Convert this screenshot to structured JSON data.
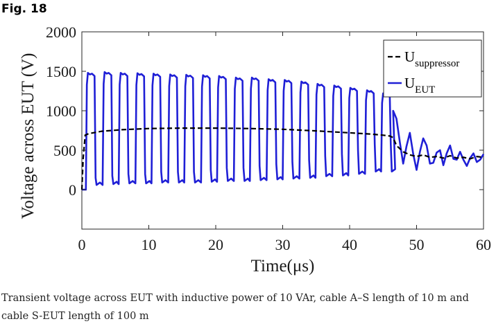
{
  "figure_label": "Fig. 18",
  "caption": "Transient voltage across EUT with inductive power of 10 VAr, cable A–S length of 10 m and cable S-EUT length of 100 m",
  "chart_data": {
    "type": "line",
    "xlabel": "Time(μs)",
    "ylabel": "Voltage across EUT (V)",
    "xlim": [
      0,
      60
    ],
    "ylim": [
      -500,
      2000
    ],
    "xticks": [
      0,
      10,
      20,
      30,
      40,
      50,
      60
    ],
    "yticks": [
      0,
      500,
      1000,
      1500,
      2000
    ],
    "grid": false,
    "legend_position": "top-right",
    "series": [
      {
        "name": "U_suppressor",
        "legend_main": "U",
        "legend_sub": "suppressor",
        "color": "#000000",
        "style": "dashed",
        "x": [
          0,
          0.2,
          0.5,
          1,
          3,
          6,
          10,
          15,
          20,
          25,
          30,
          35,
          40,
          43,
          45,
          46,
          46.5,
          47,
          48,
          49,
          50,
          51,
          52,
          53,
          54,
          55,
          56,
          57,
          58,
          59,
          60
        ],
        "y": [
          0,
          400,
          690,
          710,
          740,
          760,
          775,
          780,
          780,
          775,
          765,
          745,
          720,
          705,
          690,
          680,
          660,
          560,
          480,
          440,
          420,
          440,
          410,
          420,
          400,
          430,
          400,
          410,
          390,
          420,
          410
        ]
      },
      {
        "name": "U_EUT",
        "legend_main": "U",
        "legend_sub": "EUT",
        "color": "#1f1fd6",
        "style": "solid",
        "period": 2.4,
        "pulses_start": [
          0.6,
          3.1,
          5.5,
          8.0,
          10.4,
          12.9,
          15.3,
          17.8,
          20.2,
          22.7,
          25.1,
          27.6,
          30.0,
          32.5,
          34.9,
          37.4,
          39.8,
          42.3,
          44.7
        ],
        "pulse_width": 1.3,
        "pulse_high": [
          1480,
          1490,
          1480,
          1475,
          1470,
          1460,
          1455,
          1450,
          1440,
          1420,
          1420,
          1400,
          1390,
          1370,
          1340,
          1320,
          1290,
          1260,
          1220
        ],
        "pulse_low": [
          40,
          60,
          70,
          80,
          80,
          90,
          90,
          90,
          100,
          110,
          110,
          120,
          130,
          140,
          150,
          170,
          180,
          200,
          230
        ],
        "tail_x": [
          46.5,
          47,
          47.5,
          48,
          48.5,
          49,
          49.5,
          50,
          50.5,
          51,
          51.5,
          52,
          52.5,
          53,
          53.5,
          54,
          54.5,
          55,
          55.5,
          56,
          56.5,
          57,
          57.5,
          58,
          58.5,
          59,
          59.5,
          60
        ],
        "tail_y": [
          1000,
          900,
          600,
          330,
          550,
          720,
          450,
          250,
          480,
          650,
          560,
          330,
          340,
          470,
          500,
          310,
          460,
          560,
          390,
          380,
          480,
          380,
          300,
          400,
          460,
          350,
          380,
          450
        ]
      }
    ]
  }
}
